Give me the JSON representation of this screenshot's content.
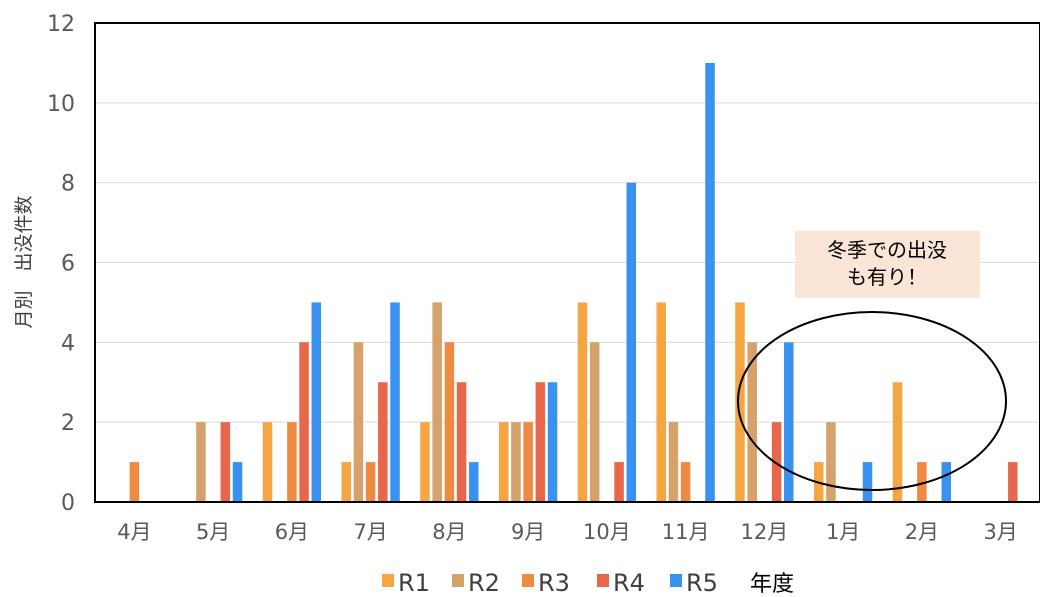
{
  "chart_data": {
    "type": "bar",
    "ylabel": "月別　出没件数",
    "xlabel": "",
    "ylim": [
      0,
      12
    ],
    "yticks": [
      0,
      2,
      4,
      6,
      8,
      10,
      12
    ],
    "grid": true,
    "categories": [
      "4月",
      "5月",
      "6月",
      "7月",
      "8月",
      "9月",
      "10月",
      "11月",
      "12月",
      "1月",
      "2月",
      "3月"
    ],
    "series": [
      {
        "name": "R1",
        "color": "#F5A542",
        "values": [
          0,
          0,
          2,
          1,
          2,
          2,
          5,
          5,
          5,
          1,
          3,
          0
        ]
      },
      {
        "name": "R2",
        "color": "#D4A26A",
        "values": [
          0,
          2,
          0,
          4,
          5,
          2,
          4,
          2,
          4,
          2,
          0,
          0
        ]
      },
      {
        "name": "R3",
        "color": "#EE8A42",
        "values": [
          1,
          0,
          2,
          1,
          4,
          2,
          0,
          1,
          0,
          0,
          1,
          0
        ]
      },
      {
        "name": "R4",
        "color": "#E8664A",
        "values": [
          0,
          2,
          4,
          3,
          3,
          3,
          1,
          0,
          2,
          0,
          0,
          1
        ]
      },
      {
        "name": "R5",
        "color": "#3A92F0",
        "values": [
          0,
          1,
          5,
          5,
          1,
          3,
          8,
          11,
          4,
          1,
          1,
          0
        ]
      }
    ],
    "legend": {
      "position": "bottom",
      "title": "年度"
    },
    "annotation": {
      "lines": [
        "冬季での出没",
        "も有り！"
      ],
      "color": "#FBE5D6"
    }
  }
}
